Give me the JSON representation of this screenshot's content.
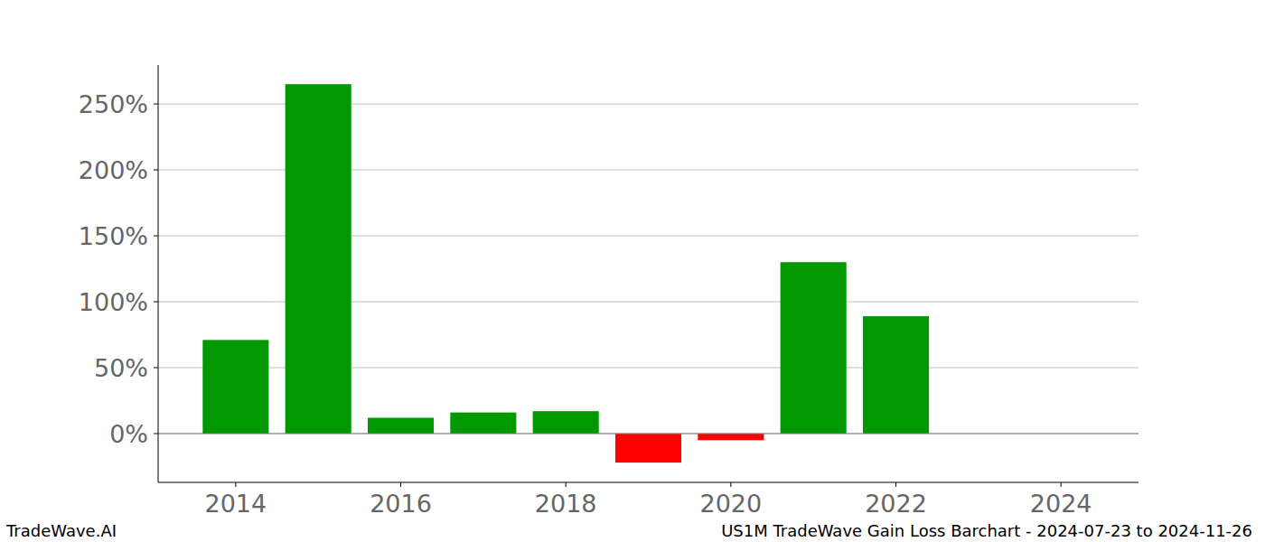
{
  "chart_data": {
    "type": "bar",
    "title": "US1M TradeWave Gain Loss Barchart - 2024-07-23 to 2024-11-26",
    "source": "TradeWave.AI",
    "x": [
      2014,
      2015,
      2016,
      2017,
      2018,
      2019,
      2020,
      2021,
      2022,
      2023,
      2024
    ],
    "values": [
      71,
      265,
      12,
      16,
      17,
      -22,
      -5,
      130,
      89,
      0,
      0
    ],
    "colors": [
      "#009900",
      "#009900",
      "#009900",
      "#009900",
      "#009900",
      "#ff0000",
      "#ff0000",
      "#009900",
      "#009900",
      "#009900",
      "#009900"
    ],
    "xlim": [
      2013.06,
      2024.94
    ],
    "xticks": [
      2014,
      2016,
      2018,
      2020,
      2022,
      2024
    ],
    "ylim": [
      -37,
      279.5
    ],
    "yticks": [
      {
        "value": 0,
        "label": "0%"
      },
      {
        "value": 50,
        "label": "50%"
      },
      {
        "value": 100,
        "label": "100%"
      },
      {
        "value": 150,
        "label": "150%"
      },
      {
        "value": 200,
        "label": "200%"
      },
      {
        "value": 250,
        "label": "250%"
      }
    ],
    "grid": true
  }
}
